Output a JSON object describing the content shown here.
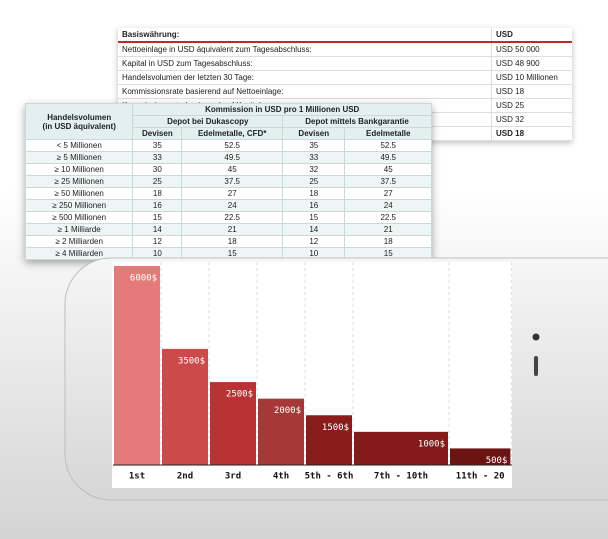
{
  "back_table": {
    "header": [
      "Basiswährung:",
      "USD"
    ],
    "rows": [
      [
        "Nettoeinlage in USD äquivalent zum Tagesabschluss:",
        "USD 50 000"
      ],
      [
        "Kapital in USD zum Tagesabschluss:",
        "USD 48 900"
      ],
      [
        "Handelsvolumen der letzten 30 Tage:",
        "USD 10 Millionen"
      ],
      [
        "Kommissionsrate basierend auf Nettoeinlage:",
        "USD 18"
      ],
      [
        "Kommissionsrate basierend auf Kapital:",
        "USD 25"
      ],
      [
        null,
        "USD 32"
      ],
      [
        null,
        "USD 18"
      ]
    ]
  },
  "front_table": {
    "volume_header": [
      "Handelsvolumen",
      "(in USD äquivalent)"
    ],
    "top_header": "Kommission in USD pro 1 Millionen USD",
    "group_headers": [
      "Depot bei Dukascopy",
      "Depot mittels Bankgarantie"
    ],
    "column_headers": [
      "Devisen",
      "Edelmetalle, CFD*",
      "Devisen",
      "Edelmetalle"
    ],
    "rows": [
      [
        "< 5  Millionen",
        "35",
        "52.5",
        "35",
        "52.5"
      ],
      [
        "≥ 5  Millionen",
        "33",
        "49.5",
        "33",
        "49.5"
      ],
      [
        "≥ 10  Millionen",
        "30",
        "45",
        "32",
        "45"
      ],
      [
        "≥ 25  Millionen",
        "25",
        "37.5",
        "25",
        "37.5"
      ],
      [
        "≥ 50  Millionen",
        "18",
        "27",
        "18",
        "27"
      ],
      [
        "≥ 250  Millionen",
        "16",
        "24",
        "16",
        "24"
      ],
      [
        "≥ 500  Millionen",
        "15",
        "22.5",
        "15",
        "22.5"
      ],
      [
        "≥ 1 Milliarde",
        "14",
        "21",
        "14",
        "21"
      ],
      [
        "≥ 2 Milliarden",
        "12",
        "18",
        "12",
        "18"
      ],
      [
        "≥ 4 Milliarden",
        "10",
        "15",
        "10",
        "15"
      ]
    ]
  },
  "chart_data": {
    "type": "bar",
    "categories": [
      "1st",
      "2nd",
      "3rd",
      "4th",
      "5th - 6th",
      "7th - 10th",
      "11th - 20"
    ],
    "values": [
      6000,
      3500,
      2500,
      2000,
      1500,
      1000,
      500
    ],
    "value_labels": [
      "6000$",
      "3500$",
      "2500$",
      "2000$",
      "1500$",
      "1000$",
      "500$"
    ],
    "colors": [
      "#e57a7a",
      "#cc4a4a",
      "#b83434",
      "#a63838",
      "#8c1b1b",
      "#841a1a",
      "#6c1414"
    ],
    "ylim": [
      0,
      6000
    ]
  }
}
